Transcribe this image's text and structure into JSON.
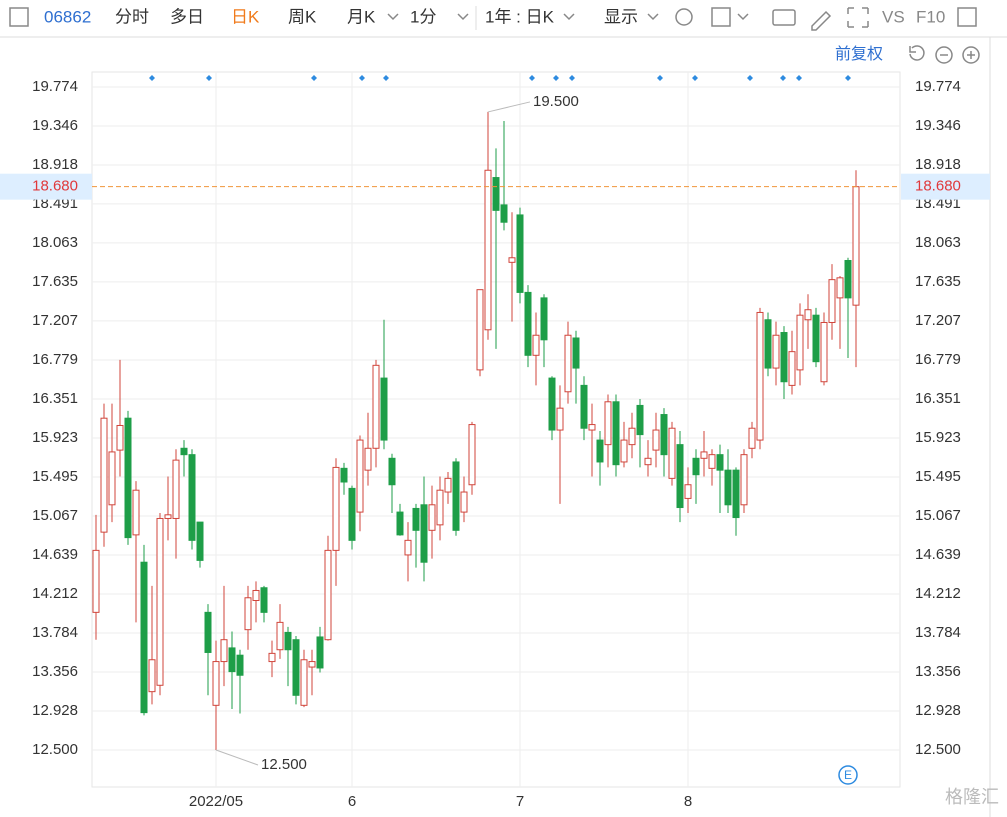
{
  "toolbar": {
    "code": "06862",
    "tabs": [
      "分时",
      "多日",
      "日K",
      "周K",
      "月K"
    ],
    "interval": "1分",
    "range": "1年 : 日K",
    "display": "显示",
    "vs": "VS",
    "f10": "F10"
  },
  "adjust": "前复权",
  "watermark": "格隆汇",
  "event_icon": "E",
  "chart_data": {
    "type": "candlestick",
    "categories": [
      null,
      null,
      null,
      null,
      null,
      null,
      null,
      null,
      null,
      null,
      null,
      null,
      null,
      null,
      null,
      "2022/05",
      null,
      null,
      null,
      null,
      null,
      null,
      null,
      null,
      null,
      null,
      null,
      null,
      null,
      null,
      null,
      null,
      "6",
      null,
      null,
      null,
      null,
      null,
      null,
      null,
      null,
      null,
      null,
      null,
      null,
      null,
      null,
      null,
      null,
      null,
      null,
      null,
      null,
      "7",
      null,
      null,
      null,
      null,
      null,
      null,
      null,
      null,
      null,
      null,
      null,
      null,
      null,
      null,
      null,
      null,
      null,
      null,
      null,
      null,
      "8",
      null,
      null,
      null,
      null,
      null,
      null,
      null,
      null,
      null,
      null,
      null,
      null,
      null,
      null,
      null,
      null,
      null,
      null,
      null,
      null,
      null
    ],
    "open": [
      14.01,
      14.89,
      15.19,
      15.79,
      16.14,
      14.86,
      14.56,
      13.14,
      13.21,
      15.04,
      15.04,
      15.81,
      15.74,
      15.0,
      14.01,
      12.99,
      13.47,
      13.62,
      13.54,
      13.82,
      14.14,
      14.28,
      13.47,
      13.6,
      13.79,
      13.71,
      12.99,
      13.41,
      13.74,
      13.71,
      14.69,
      15.59,
      15.37,
      15.11,
      15.57,
      15.81,
      16.58,
      15.7,
      15.11,
      14.64,
      15.15,
      15.19,
      14.91,
      14.97,
      15.33,
      15.66,
      15.11,
      15.41,
      16.67,
      17.11,
      18.78,
      18.48,
      17.85,
      18.37,
      17.52,
      16.83,
      17.46,
      16.58,
      16.01,
      16.43,
      17.02,
      16.5,
      16.01,
      15.9,
      15.85,
      16.32,
      15.66,
      15.85,
      16.28,
      15.63,
      15.79,
      16.18,
      15.48,
      15.85,
      15.26,
      15.7,
      15.7,
      15.59,
      15.74,
      15.57,
      15.57,
      15.19,
      15.81,
      15.9,
      17.22,
      16.69,
      17.08,
      16.5,
      16.67,
      17.22,
      17.27,
      16.54,
      17.19,
      17.46,
      17.87,
      17.38
    ],
    "high": [
      15.08,
      16.3,
      16.3,
      16.78,
      16.22,
      15.45,
      14.75,
      14.3,
      15.1,
      15.5,
      15.8,
      15.9,
      15.8,
      15.0,
      14.1,
      13.7,
      14.3,
      13.8,
      13.6,
      14.3,
      14.35,
      14.3,
      13.7,
      14.1,
      13.85,
      13.75,
      13.6,
      13.6,
      13.85,
      14.85,
      15.7,
      15.65,
      15.4,
      15.95,
      16.2,
      16.78,
      17.22,
      15.75,
      15.2,
      15.0,
      15.2,
      15.5,
      15.4,
      15.5,
      15.55,
      15.7,
      15.5,
      16.1,
      17.55,
      19.5,
      19.1,
      19.4,
      18.4,
      18.45,
      17.6,
      17.3,
      17.5,
      16.6,
      16.5,
      17.2,
      17.1,
      16.6,
      16.3,
      16.0,
      16.4,
      16.4,
      16.1,
      16.2,
      16.35,
      15.9,
      16.2,
      16.25,
      16.1,
      16.0,
      15.6,
      15.8,
      16.0,
      15.8,
      15.85,
      15.8,
      15.6,
      15.8,
      16.1,
      17.35,
      17.3,
      17.2,
      17.15,
      17.1,
      17.4,
      17.5,
      17.35,
      17.3,
      17.83,
      17.7,
      17.9,
      18.86
    ],
    "low": [
      13.71,
      14.73,
      15.0,
      15.5,
      14.75,
      13.9,
      12.88,
      13.0,
      13.1,
      14.8,
      14.6,
      15.5,
      14.7,
      14.5,
      13.1,
      12.5,
      13.2,
      12.95,
      12.9,
      13.6,
      13.9,
      13.9,
      13.3,
      13.5,
      13.2,
      13.0,
      12.97,
      13.1,
      13.35,
      13.7,
      14.3,
      15.3,
      14.7,
      14.9,
      15.4,
      15.6,
      15.8,
      15.1,
      14.85,
      14.35,
      14.5,
      14.35,
      14.6,
      14.8,
      15.2,
      14.85,
      15.0,
      15.3,
      16.6,
      17.0,
      16.9,
      18.2,
      17.2,
      17.4,
      16.7,
      16.5,
      16.7,
      15.9,
      15.2,
      16.3,
      16.3,
      15.9,
      15.5,
      15.4,
      15.6,
      15.5,
      15.6,
      15.7,
      15.6,
      15.5,
      15.6,
      15.5,
      15.4,
      15.0,
      15.1,
      15.2,
      15.5,
      15.4,
      15.1,
      15.1,
      14.85,
      15.1,
      15.7,
      15.8,
      16.6,
      16.5,
      16.35,
      16.4,
      16.5,
      16.9,
      16.7,
      16.5,
      17.0,
      16.9,
      16.8,
      16.7
    ],
    "close": [
      14.69,
      16.14,
      15.77,
      16.06,
      14.83,
      15.35,
      12.91,
      13.49,
      15.04,
      15.08,
      15.68,
      15.74,
      14.8,
      14.58,
      13.57,
      13.47,
      13.71,
      13.36,
      13.32,
      14.17,
      14.25,
      14.01,
      13.56,
      13.9,
      13.6,
      13.1,
      13.49,
      13.47,
      13.4,
      14.69,
      15.6,
      15.44,
      14.8,
      15.9,
      15.81,
      16.72,
      15.9,
      15.41,
      14.86,
      14.8,
      14.91,
      14.56,
      15.19,
      15.35,
      15.48,
      14.91,
      15.33,
      16.07,
      17.55,
      18.86,
      18.42,
      18.29,
      17.9,
      17.52,
      16.83,
      17.05,
      17.0,
      16.01,
      16.25,
      17.05,
      16.69,
      16.03,
      16.07,
      15.66,
      16.32,
      15.63,
      15.9,
      16.03,
      15.96,
      15.7,
      16.01,
      15.74,
      16.03,
      15.16,
      15.41,
      15.52,
      15.77,
      15.74,
      15.57,
      15.19,
      15.05,
      15.74,
      16.03,
      17.3,
      16.69,
      17.05,
      16.54,
      16.87,
      17.27,
      17.33,
      16.76,
      17.19,
      17.66,
      17.68,
      17.46,
      18.68
    ],
    "up_color": "#d0453b",
    "down_color": "#1e9e48",
    "ylim": [
      12.094,
      20.311
    ],
    "yticks": [
      {
        "value": 12.5,
        "label": "12.500"
      },
      12.928,
      13.356,
      13.784,
      14.212,
      14.639,
      15.067,
      15.495,
      15.923,
      16.351,
      16.779,
      17.207,
      17.635,
      18.063,
      18.491,
      18.918,
      19.346,
      19.774
    ],
    "grid": true,
    "last_price": {
      "value": 18.68,
      "label": "18.680"
    },
    "annotations": [
      {
        "value": 19.5,
        "label": "19.500"
      },
      {
        "value": 12.5,
        "label": "12.500"
      }
    ]
  }
}
